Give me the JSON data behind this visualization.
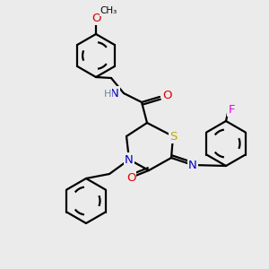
{
  "bg_color": "#ebebeb",
  "atom_colors": {
    "C": "#000000",
    "N": "#0000cc",
    "O": "#dd0000",
    "S": "#bbaa00",
    "F": "#ee00ee",
    "H": "#6688aa"
  },
  "bond_color": "#000000",
  "bond_lw": 1.6,
  "title": ""
}
